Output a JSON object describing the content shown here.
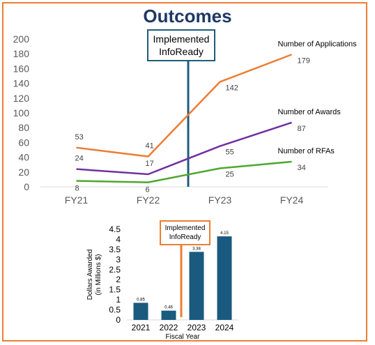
{
  "page": {
    "title": "Outcomes"
  },
  "chart_data": [
    {
      "type": "line",
      "title": "Outcomes",
      "categories": [
        "FY21",
        "FY22",
        "FY23",
        "FY24"
      ],
      "ylim": [
        0,
        200
      ],
      "yticks": [
        0,
        20,
        40,
        60,
        80,
        100,
        120,
        140,
        160,
        180,
        200
      ],
      "grid": false,
      "series": [
        {
          "name": "Number of Applications",
          "values": [
            53,
            41,
            142,
            179
          ],
          "color": "#ed7d31"
        },
        {
          "name": "Number of Awards",
          "values": [
            24,
            17,
            55,
            87
          ],
          "color": "#7030a0"
        },
        {
          "name": "Number of RFAs",
          "values": [
            8,
            6,
            25,
            34
          ],
          "color": "#4ea72e"
        }
      ],
      "annotation": {
        "line1": "Implemented",
        "line2": "InfoReady",
        "color": "#1f5c7a"
      }
    },
    {
      "type": "bar",
      "categories": [
        "2021",
        "2022",
        "2023",
        "2024"
      ],
      "values": [
        0.85,
        0.46,
        3.38,
        4.15
      ],
      "value_labels": [
        "0.85",
        "0.46",
        "3.38",
        "4.15"
      ],
      "xlabel": "Fiscal Year",
      "ylabel_line1": "Dollars Awarded",
      "ylabel_line2": "(in Millions $)",
      "ylim": [
        0,
        4.5
      ],
      "yticks": [
        "0",
        "0.5",
        "1",
        "1.5",
        "2",
        "2.5",
        "3",
        "3.5",
        "4",
        "4.5"
      ],
      "bar_color": "#1a5a7e",
      "annotation": {
        "line1": "Implemented",
        "line2": "InfoReady",
        "color": "#ed7d31"
      }
    }
  ]
}
